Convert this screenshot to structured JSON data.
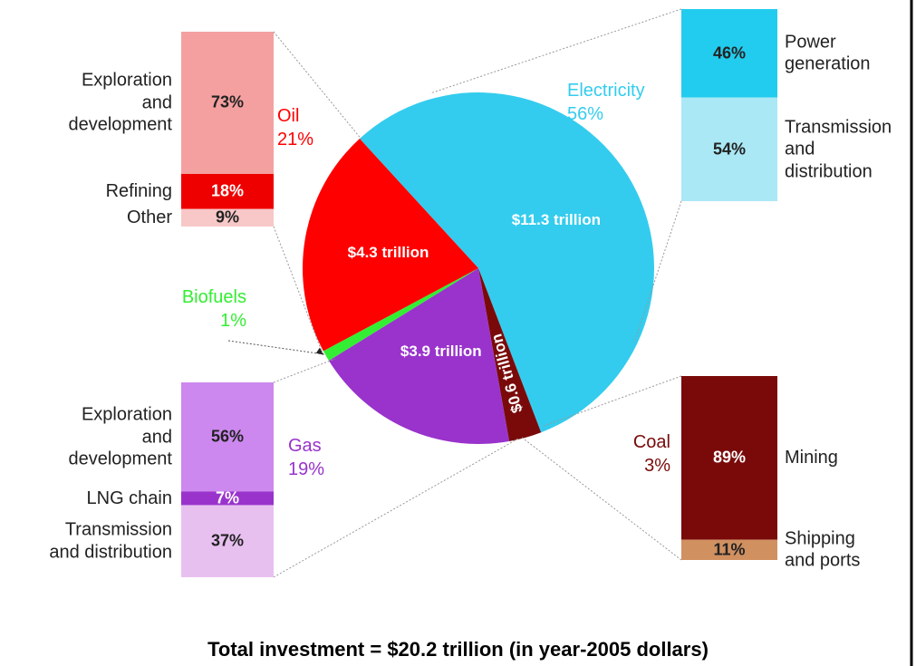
{
  "chart_data": {
    "type": "pie",
    "title": "Total investment = $20.2 trillion (in year-2005 dollars)",
    "categories": [
      "Electricity",
      "Coal",
      "Gas",
      "Biofuels",
      "Oil"
    ],
    "values": [
      56,
      3,
      19,
      1,
      21
    ],
    "value_labels": [
      "56%",
      "3%",
      "19%",
      "1%",
      "21%"
    ],
    "colors": [
      "#33ccee",
      "#7a0a0a",
      "#9933cc",
      "#33ee33",
      "#ff0000"
    ],
    "amounts": [
      11.3,
      0.6,
      3.9,
      null,
      4.3
    ],
    "amount_labels": [
      "$11.3 trillion",
      "$0.6 trillion",
      "$3.9 trillion",
      null,
      "$4.3 trillion"
    ],
    "breakdowns": [
      {
        "parts": [
          "Power\ngeneration",
          "Transmission\nand\ndistribution"
        ],
        "values": [
          46,
          54
        ],
        "value_labels": [
          "46%",
          "54%"
        ],
        "colors": [
          "#22ccee",
          "#aae8f5"
        ]
      },
      {
        "parts": [
          "Mining",
          "Shipping\nand ports"
        ],
        "values": [
          89,
          11
        ],
        "value_labels": [
          "89%",
          "11%"
        ],
        "colors": [
          "#7a0a0a",
          "#d09060"
        ]
      },
      {
        "parts": [
          "Exploration\nand\ndevelopment",
          "LNG chain",
          "Transmission\nand distribution"
        ],
        "values": [
          56,
          7,
          37
        ],
        "value_labels": [
          "56%",
          "7%",
          "37%"
        ],
        "colors": [
          "#cc88ee",
          "#9933cc",
          "#e8c0f0"
        ]
      },
      null,
      {
        "parts": [
          "Exploration\nand\ndevelopment",
          "Refining",
          "Other"
        ],
        "values": [
          73,
          18,
          9
        ],
        "value_labels": [
          "73%",
          "18%",
          "9%"
        ],
        "colors": [
          "#f4a0a0",
          "#ee0000",
          "#f8c8c8"
        ]
      }
    ]
  }
}
